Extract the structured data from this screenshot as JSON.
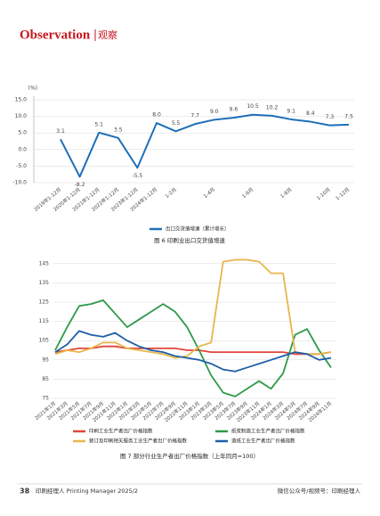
{
  "header": {
    "brand": "Observation",
    "section": "观察"
  },
  "chart_data": [
    {
      "type": "line",
      "title": "图 6  印刷业出口交货值增速",
      "ylabel": "(%)",
      "categories": [
        "2019年1-12月",
        "2020年1-12月",
        "2021年1-12月",
        "2022年1-12月",
        "2023年1-12月",
        "2024年1-12月",
        "1-2月",
        null,
        "1-4月",
        null,
        "1-6月",
        null,
        "1-8月",
        null,
        "1-10月",
        "1-12月"
      ],
      "series": [
        {
          "name": "出口交货值增速（累计增长）",
          "color": "#1f6fb8",
          "values": [
            3.1,
            -8.2,
            5.1,
            3.5,
            -5.5,
            8.0,
            5.5,
            7.7,
            9.0,
            9.6,
            10.5,
            10.2,
            9.1,
            8.4,
            7.3,
            7.5
          ],
          "value_labels": [
            "3.1",
            "-8.2",
            "5.1",
            "3.5",
            "-5.5",
            "8.0",
            "5.5",
            "7.7",
            "9.0",
            "9.6",
            "10.5",
            "10.2",
            "9.1",
            "8.4",
            "7.3",
            "7.5"
          ]
        }
      ],
      "ylim": [
        -10,
        15
      ],
      "yticks": [
        {
          "value": 15,
          "label": "15.0"
        },
        {
          "value": 10,
          "label": "10.0"
        },
        {
          "value": 5,
          "label": "5.0"
        },
        {
          "value": 0,
          "label": "0.0"
        },
        {
          "value": -5,
          "label": "-5.0"
        },
        {
          "value": -10,
          "label": "-10.0"
        }
      ],
      "grid": true
    },
    {
      "type": "line",
      "title": "图 7  部分行业生产者出厂价格指数（上年同月=100）",
      "categories": [
        "2021年1月",
        "2021年3月",
        "2021年5月",
        "2021年7月",
        "2021年9月",
        "2021年11月",
        "2022年1月",
        "2022年3月",
        "2022年5月",
        "2022年7月",
        "2022年9月",
        "2022年11月",
        "2023年1月",
        "2023年3月",
        "2023年5月",
        "2023年7月",
        "2023年9月",
        "2023年11月",
        "2024年1月",
        "2024年3月",
        "2024年5月",
        "2024年7月",
        "2024年9月",
        "2024年11月"
      ],
      "series": [
        {
          "name": "印刷工业生产者出厂价格指数",
          "color": "#e0473c",
          "values": [
            99,
            100,
            101,
            101,
            102,
            102,
            101,
            101,
            101,
            101,
            101,
            100,
            100,
            99,
            99,
            99,
            99,
            99,
            99,
            99,
            98,
            98,
            98,
            99
          ]
        },
        {
          "name": "纸浆制造工业生产者出厂价格指数",
          "color": "#2e9a4a",
          "values": [
            100,
            112,
            123,
            124,
            126,
            119,
            112,
            116,
            120,
            124,
            120,
            112,
            100,
            87,
            78,
            76,
            80,
            84,
            80,
            88,
            108,
            111,
            100,
            91
          ]
        },
        {
          "name": "装订及印刷相关服务工业生产者出厂价格指数",
          "color": "#e8b64a",
          "values": [
            98,
            100,
            99,
            101,
            104,
            104,
            101,
            100,
            99,
            98,
            96,
            97,
            102,
            104,
            146,
            147,
            147,
            146,
            140,
            140,
            99,
            98,
            98,
            99
          ]
        },
        {
          "name": "造纸工业生产者出厂价格指数",
          "color": "#1f5fa8",
          "values": [
            99,
            103,
            110,
            108,
            107,
            109,
            105,
            102,
            100,
            99,
            97,
            96,
            95,
            93,
            90,
            89,
            91,
            93,
            95,
            97,
            99,
            98,
            95,
            96
          ]
        }
      ],
      "ylim": [
        75,
        150
      ],
      "yticks": [
        75,
        85,
        95,
        105,
        115,
        125,
        135,
        145
      ],
      "grid": true
    }
  ],
  "footer": {
    "page": "38",
    "magazine": "印刷经理人 Printing Manager 2025/2",
    "wechat": "微信公众号/视频号：印刷经理人"
  }
}
